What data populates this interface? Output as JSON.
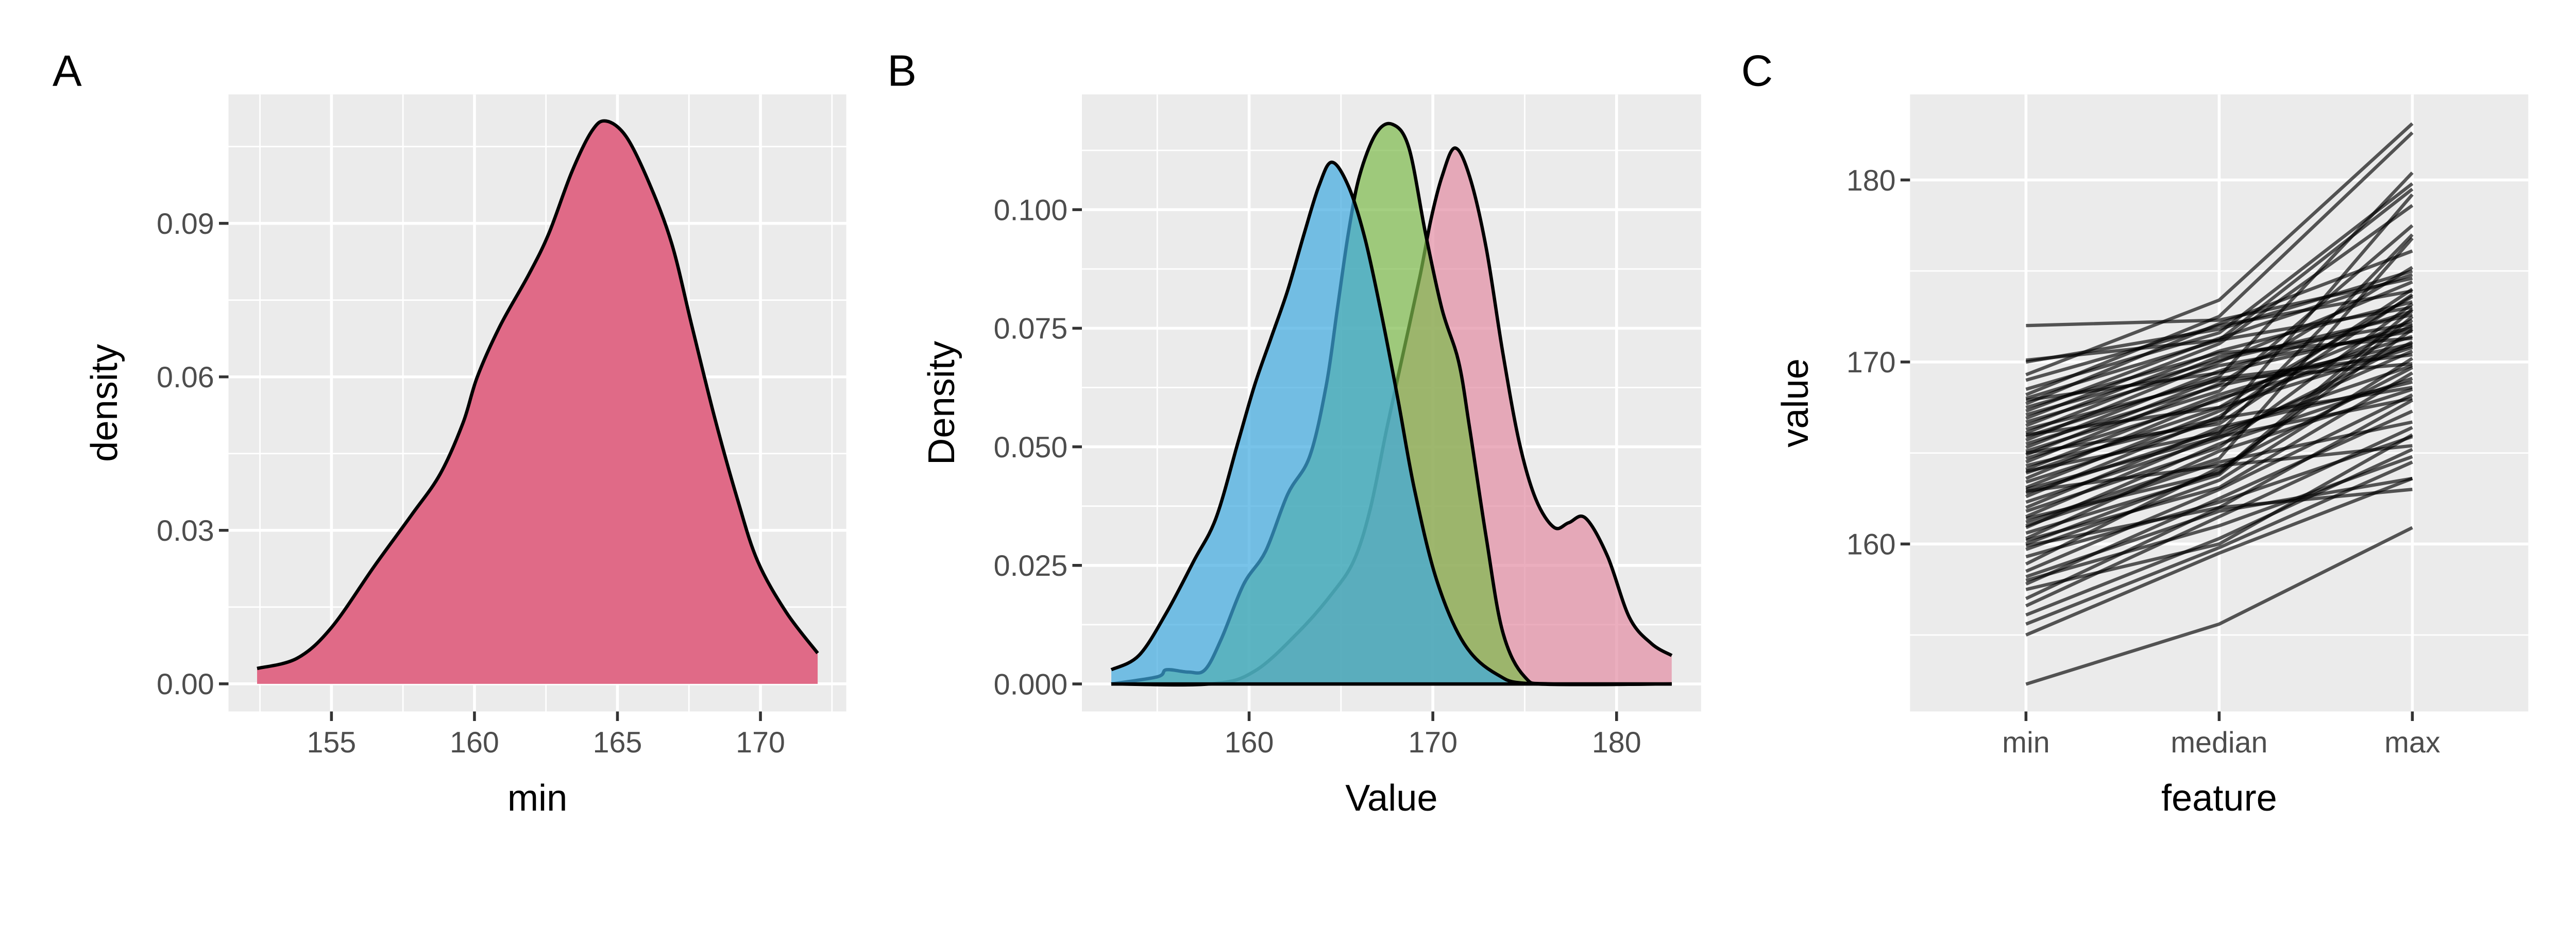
{
  "chart_data": [
    {
      "tag": "A",
      "type": "area",
      "xlabel": "min",
      "ylabel": "density",
      "xlim": [
        151.4,
        173.0
      ],
      "ylim": [
        -0.0054,
        0.1152
      ],
      "xticks": [
        155,
        160,
        165,
        170
      ],
      "yticks": [
        0.0,
        0.03,
        0.06,
        0.09
      ],
      "ytick_labels": [
        "0.00",
        "0.03",
        "0.06",
        "0.09"
      ],
      "grid": true,
      "fill_color": "#E06A87",
      "series": [
        {
          "x": [
            152.4,
            153.8,
            155.0,
            156.5,
            157.8,
            158.8,
            159.6,
            160.1,
            160.9,
            161.9,
            162.6,
            163.4,
            164.1,
            164.6,
            165.3,
            166.1,
            166.9,
            167.6,
            168.4,
            169.2,
            169.9,
            170.9,
            172.0
          ],
          "y": [
            0.003,
            0.005,
            0.011,
            0.023,
            0.033,
            0.041,
            0.051,
            0.06,
            0.07,
            0.08,
            0.088,
            0.1,
            0.108,
            0.11,
            0.107,
            0.098,
            0.086,
            0.07,
            0.052,
            0.036,
            0.024,
            0.014,
            0.006
          ]
        }
      ]
    },
    {
      "tag": "B",
      "type": "area",
      "xlabel": "Value",
      "ylabel": "Density",
      "xlim": [
        150.9,
        184.6
      ],
      "ylim": [
        -0.0058,
        0.1243
      ],
      "xticks": [
        160,
        170,
        180
      ],
      "yticks": [
        0.0,
        0.025,
        0.05,
        0.075,
        0.1
      ],
      "ytick_labels": [
        "0.000",
        "0.025",
        "0.050",
        "0.075",
        "0.100"
      ],
      "grid": true,
      "opacity": 0.7,
      "series": [
        {
          "color": "#E38BA2",
          "x": [
            152.5,
            157.9,
            160.3,
            162.7,
            164.5,
            165.7,
            166.6,
            167.5,
            168.4,
            169.3,
            169.9,
            170.5,
            171.2,
            172.0,
            172.9,
            173.8,
            174.7,
            175.6,
            176.6,
            177.4,
            178.3,
            179.5,
            180.7,
            181.9,
            183.0
          ],
          "y": [
            0,
            0,
            0.0027,
            0.011,
            0.019,
            0.026,
            0.037,
            0.054,
            0.07,
            0.086,
            0.098,
            0.107,
            0.113,
            0.107,
            0.092,
            0.07,
            0.051,
            0.039,
            0.033,
            0.034,
            0.035,
            0.027,
            0.014,
            0.0085,
            0.006
          ]
        },
        {
          "color": "#7DBB4C",
          "x": [
            152.5,
            155.0,
            155.5,
            156.7,
            157.6,
            158.5,
            159.7,
            160.9,
            162.1,
            163.3,
            164.2,
            164.8,
            165.4,
            166.0,
            166.9,
            167.8,
            168.7,
            169.6,
            170.5,
            171.4,
            172.0,
            172.9,
            173.8,
            175.0,
            176.5,
            183.0
          ],
          "y": [
            0,
            0.0015,
            0.003,
            0.0025,
            0.003,
            0.0096,
            0.021,
            0.028,
            0.04,
            0.048,
            0.063,
            0.079,
            0.095,
            0.107,
            0.116,
            0.118,
            0.113,
            0.095,
            0.079,
            0.068,
            0.054,
            0.031,
            0.011,
            0.0015,
            0,
            0
          ]
        },
        {
          "color": "#3FA9E0",
          "x": [
            152.5,
            154.0,
            155.5,
            157.0,
            158.2,
            159.4,
            160.3,
            161.2,
            162.1,
            163.0,
            163.8,
            164.5,
            165.4,
            166.3,
            167.2,
            168.1,
            169.0,
            170.2,
            171.7,
            173.5,
            175.6,
            183.0
          ],
          "y": [
            0.003,
            0.006,
            0.015,
            0.026,
            0.035,
            0.051,
            0.063,
            0.073,
            0.083,
            0.095,
            0.105,
            0.11,
            0.105,
            0.094,
            0.078,
            0.06,
            0.041,
            0.022,
            0.0085,
            0.002,
            0,
            0
          ]
        }
      ]
    },
    {
      "tag": "C",
      "type": "line",
      "xlabel": "feature",
      "ylabel": "value",
      "categories": [
        "min",
        "median",
        "max"
      ],
      "ylim": [
        150.8,
        184.7
      ],
      "yticks": [
        160,
        170,
        180
      ],
      "grid": true,
      "line_color": "#000000",
      "line_opacity": 0.65,
      "series": [
        [
          152.3,
          155.6,
          160.9
        ],
        [
          155.0,
          159.5,
          163.6
        ],
        [
          155.6,
          159.8,
          164.5
        ],
        [
          156.1,
          160.3,
          165.2
        ],
        [
          156.6,
          161.5,
          166.4
        ],
        [
          157.0,
          162.0,
          163.0
        ],
        [
          157.5,
          160.0,
          166.0
        ],
        [
          157.8,
          162.5,
          167.3
        ],
        [
          158.2,
          161.8,
          163.6
        ],
        [
          158.5,
          163.0,
          168.2
        ],
        [
          158.9,
          164.2,
          169.7
        ],
        [
          159.3,
          162.3,
          165.9
        ],
        [
          159.7,
          163.5,
          170.2
        ],
        [
          160.0,
          164.0,
          171.8
        ],
        [
          160.3,
          165.1,
          168.5
        ],
        [
          160.6,
          163.8,
          172.5
        ],
        [
          160.9,
          165.5,
          169.1
        ],
        [
          161.2,
          164.7,
          176.8
        ],
        [
          161.5,
          166.0,
          170.6
        ],
        [
          161.8,
          165.3,
          173.2
        ],
        [
          162.0,
          166.4,
          168.9
        ],
        [
          162.3,
          165.8,
          171.1
        ],
        [
          162.6,
          167.0,
          174.0
        ],
        [
          162.8,
          166.2,
          169.8
        ],
        [
          163.1,
          167.3,
          172.0
        ],
        [
          163.4,
          166.8,
          179.2
        ],
        [
          163.6,
          168.0,
          170.9
        ],
        [
          163.9,
          167.5,
          173.6
        ],
        [
          164.1,
          168.2,
          171.4
        ],
        [
          164.3,
          166.9,
          168.6
        ],
        [
          164.5,
          168.8,
          175.2
        ],
        [
          164.7,
          167.9,
          172.3
        ],
        [
          164.9,
          169.1,
          170.4
        ],
        [
          165.1,
          168.4,
          177.5
        ],
        [
          165.3,
          169.5,
          172.8
        ],
        [
          165.5,
          168.7,
          171.0
        ],
        [
          165.7,
          170.0,
          174.4
        ],
        [
          165.9,
          169.2,
          180.4
        ],
        [
          166.1,
          170.3,
          172.1
        ],
        [
          166.3,
          169.0,
          169.9
        ],
        [
          166.5,
          170.6,
          173.3
        ],
        [
          166.7,
          169.8,
          171.7
        ],
        [
          166.9,
          171.0,
          178.6
        ],
        [
          167.1,
          170.1,
          172.6
        ],
        [
          167.3,
          171.3,
          174.8
        ],
        [
          167.5,
          170.5,
          171.3
        ],
        [
          167.7,
          172.1,
          176.1
        ],
        [
          168.0,
          171.2,
          173.0
        ],
        [
          168.2,
          172.5,
          182.6
        ],
        [
          168.5,
          171.6,
          179.8
        ],
        [
          169.0,
          172.0,
          173.9
        ],
        [
          169.3,
          173.4,
          183.1
        ],
        [
          170.0,
          171.8,
          175.0
        ],
        [
          170.1,
          171.2,
          179.5
        ],
        [
          172.0,
          172.3,
          174.6
        ],
        [
          161.0,
          164.5,
          166.7
        ],
        [
          159.9,
          162.0,
          167.9
        ],
        [
          162.9,
          164.3,
          165.4
        ],
        [
          164.0,
          166.1,
          177.0
        ],
        [
          166.0,
          167.5,
          170.8
        ],
        [
          163.0,
          165.9,
          168.0
        ],
        [
          160.2,
          163.1,
          169.4
        ],
        [
          165.0,
          166.6,
          173.7
        ],
        [
          167.9,
          169.4,
          171.9
        ],
        [
          161.4,
          163.9,
          172.9
        ],
        [
          158.0,
          161.0,
          164.8
        ]
      ]
    }
  ]
}
